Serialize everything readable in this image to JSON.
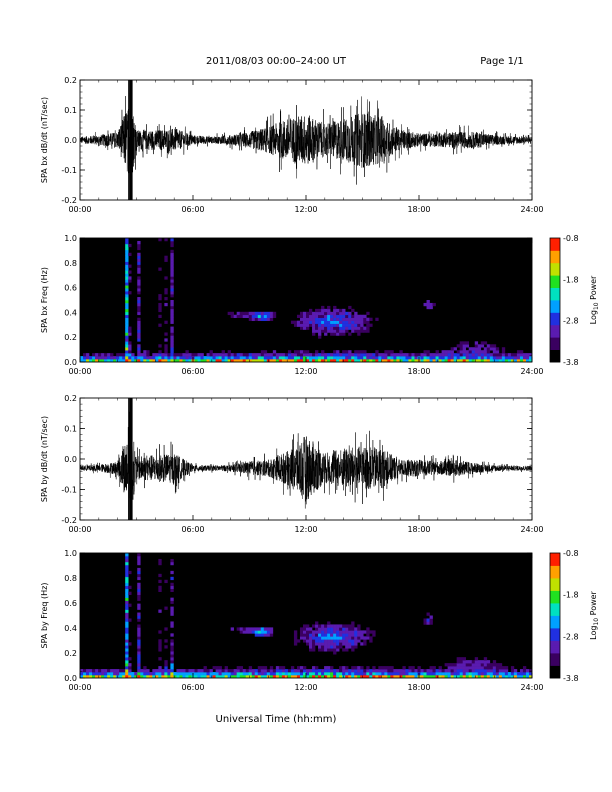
{
  "header": {
    "title": "2011/08/03  00:00–24:00 UT",
    "page": "Page 1/1"
  },
  "xaxis": {
    "label": "Universal Time (hh:mm)",
    "ticks": [
      "00:00",
      "06:00",
      "12:00",
      "18:00",
      "24:00"
    ],
    "tick_hours": [
      0,
      6,
      12,
      18,
      24
    ],
    "range_hours": [
      0,
      24
    ]
  },
  "colorbar": {
    "label": "Log10 Power",
    "label_text": "Log",
    "label_sub": "10",
    "label_rest": " Power",
    "ticks": [
      "-0.8",
      "-1.8",
      "-2.8",
      "-3.8"
    ],
    "range": [
      -3.8,
      -0.8
    ],
    "colors": [
      "#000000",
      "#3a0060",
      "#5a1bb0",
      "#2030e0",
      "#00a0ff",
      "#00e0c0",
      "#20e020",
      "#c0e000",
      "#ffa000",
      "#ff2000"
    ]
  },
  "chart_data": [
    {
      "type": "line",
      "ylabel": "SPA bx dB/dt (nT/sec)",
      "ylim": [
        -0.2,
        0.2
      ],
      "yticks": [
        "-0.2",
        "-0.1",
        "0.0",
        "0.1",
        "0.2"
      ],
      "ytick_values": [
        -0.2,
        -0.1,
        0.0,
        0.1,
        0.2
      ],
      "series": [
        {
          "envelope_hours": [
            0,
            1,
            2,
            2.5,
            2.8,
            3,
            4,
            5,
            6,
            7,
            8,
            9,
            10,
            11,
            12,
            13,
            14,
            15,
            16,
            17,
            18,
            19,
            20,
            21,
            22,
            23,
            24
          ],
          "envelope_amp": [
            0.02,
            0.03,
            0.05,
            0.2,
            0.2,
            0.06,
            0.06,
            0.07,
            0.03,
            0.02,
            0.03,
            0.05,
            0.08,
            0.13,
            0.16,
            0.1,
            0.13,
            0.17,
            0.14,
            0.06,
            0.04,
            0.04,
            0.05,
            0.05,
            0.03,
            0.025,
            0.02
          ],
          "offset": 0.0
        }
      ]
    },
    {
      "type": "heatmap",
      "ylabel": "SPA bx Freq (Hz)",
      "ylim": [
        0.0,
        1.0
      ],
      "yticks": [
        "0.0",
        "0.2",
        "0.4",
        "0.6",
        "0.8",
        "1.0"
      ],
      "ytick_values": [
        0.0,
        0.2,
        0.4,
        0.6,
        0.8,
        1.0
      ],
      "power_range": [
        -3.8,
        -0.8
      ]
    },
    {
      "type": "line",
      "ylabel": "SPA by dB/dt (nT/sec)",
      "ylim": [
        -0.2,
        0.2
      ],
      "yticks": [
        "-0.2",
        "-0.1",
        "0.0",
        "0.1",
        "0.2"
      ],
      "ytick_values": [
        -0.2,
        -0.1,
        0.0,
        0.1,
        0.2
      ],
      "series": [
        {
          "envelope_hours": [
            0,
            1,
            2,
            2.5,
            2.8,
            3,
            4,
            5,
            6,
            7,
            8,
            9,
            10,
            11,
            12,
            13,
            14,
            15,
            16,
            17,
            18,
            19,
            20,
            21,
            22,
            23,
            24
          ],
          "envelope_amp": [
            0.015,
            0.02,
            0.04,
            0.2,
            0.2,
            0.07,
            0.08,
            0.09,
            0.02,
            0.015,
            0.02,
            0.04,
            0.05,
            0.1,
            0.2,
            0.09,
            0.12,
            0.13,
            0.12,
            0.05,
            0.05,
            0.04,
            0.05,
            0.03,
            0.02,
            0.015,
            0.015
          ],
          "offset": -0.03
        }
      ]
    },
    {
      "type": "heatmap",
      "ylabel": "SPA by Freq (Hz)",
      "ylim": [
        0.0,
        1.0
      ],
      "yticks": [
        "0.0",
        "0.2",
        "0.4",
        "0.6",
        "0.8",
        "1.0"
      ],
      "ytick_values": [
        0.0,
        0.2,
        0.4,
        0.6,
        0.8,
        1.0
      ],
      "power_range": [
        -3.8,
        -0.8
      ]
    }
  ]
}
